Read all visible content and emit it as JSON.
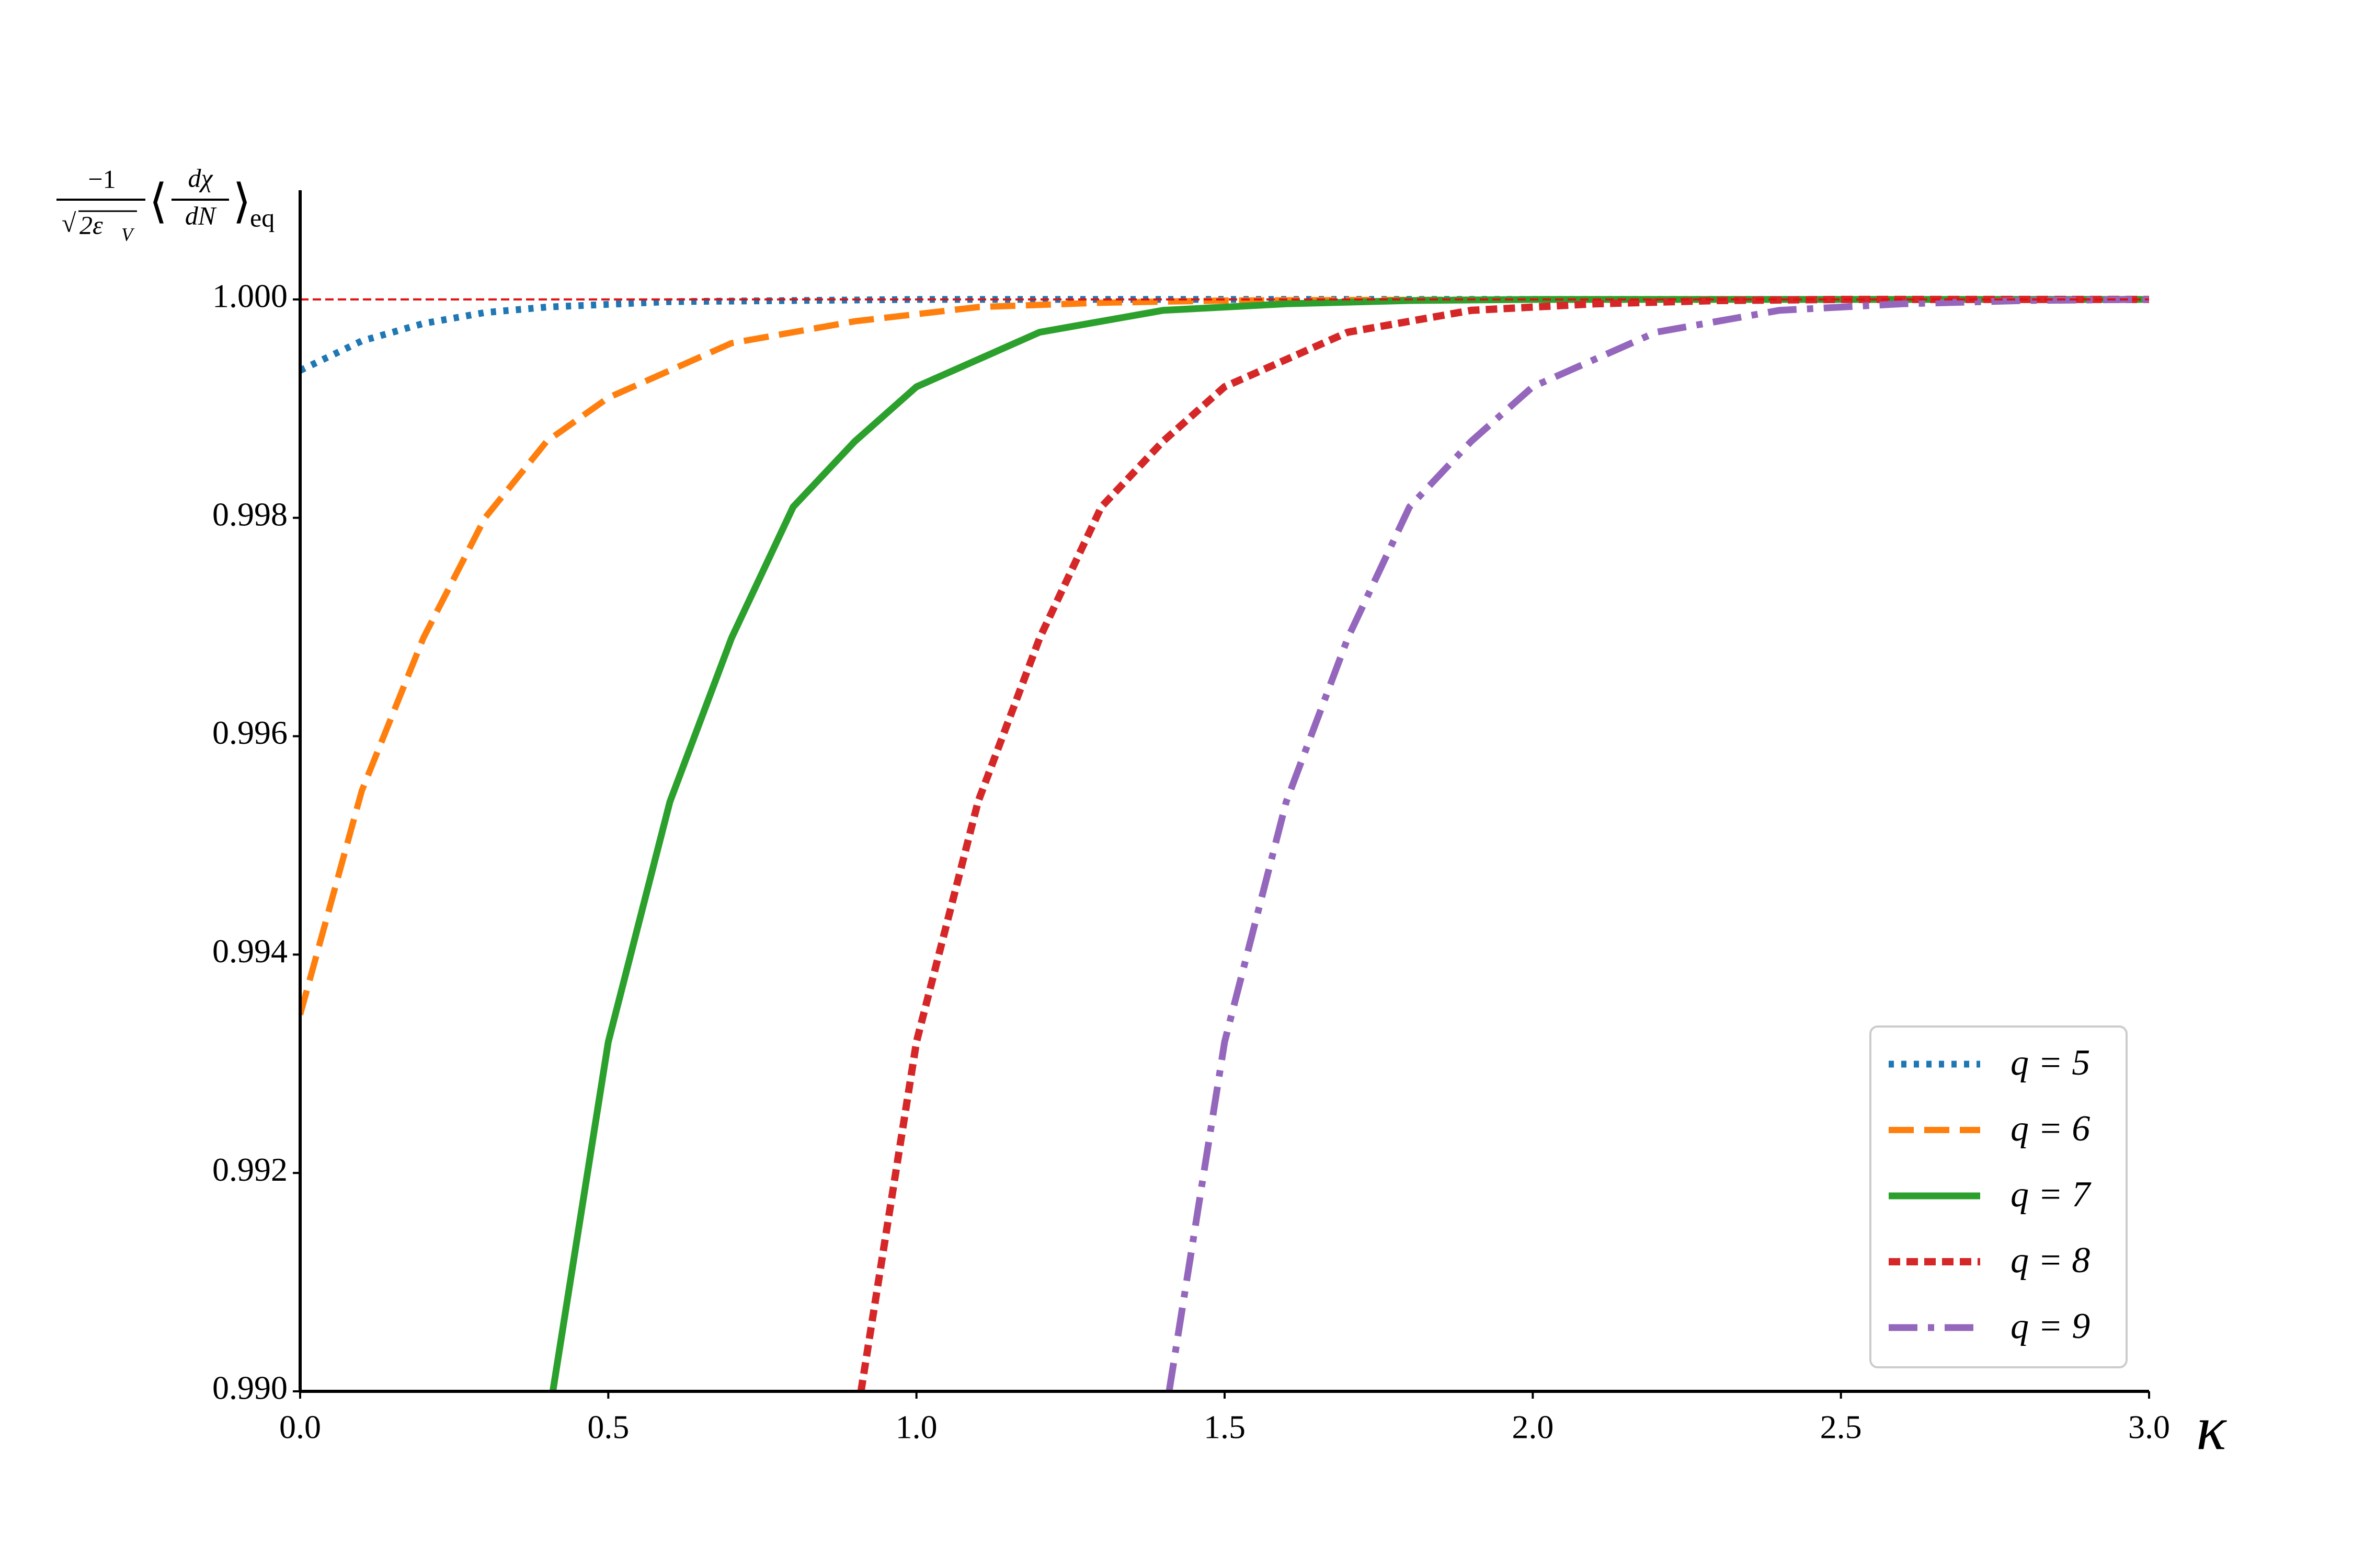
{
  "chart_data": {
    "type": "line",
    "ylabel": {
      "num1": "−1",
      "sqrt": "√",
      "den1": "2ε",
      "den1_sub": "V",
      "open": "⟨",
      "num2": "dχ",
      "den2": "dN",
      "close": "⟩",
      "sub": "eq"
    },
    "xlabel": "κ",
    "xlim": [
      0,
      3
    ],
    "ylim": [
      0.99,
      1.001
    ],
    "xticks": [
      {
        "value": 0,
        "label": "0.0"
      },
      0.5,
      {
        "value": 1,
        "label": "1.0"
      },
      1.5,
      {
        "value": 2,
        "label": "2.0"
      },
      2.5,
      {
        "value": 3,
        "label": "3.0"
      }
    ],
    "yticks": [
      {
        "value": 0.99,
        "label": "0.990"
      },
      {
        "value": 0.992,
        "label": "0.992"
      },
      {
        "value": 0.994,
        "label": "0.994"
      },
      {
        "value": 0.996,
        "label": "0.996"
      },
      {
        "value": 0.998,
        "label": "0.998"
      },
      {
        "value": 1,
        "label": "1.000"
      }
    ],
    "reference_line": {
      "value": 1,
      "color": "#e01010"
    },
    "legend": "lower right",
    "series": [
      {
        "name": "q = 5",
        "color": "#1f77b4",
        "dash": "dotted",
        "x": [
          0,
          0.1,
          0.2,
          0.3,
          0.4,
          0.6,
          0.8,
          1.0,
          1.5,
          3.0
        ],
        "values": [
          0.99935,
          0.99962,
          0.99978,
          0.99988,
          0.99993,
          0.99998,
          0.99999,
          1.0,
          1.0,
          1.0
        ]
      },
      {
        "name": "q = 6",
        "color": "#ff7f0e",
        "dash": "dashed",
        "x": [
          0,
          0.1,
          0.2,
          0.3,
          0.4,
          0.5,
          0.7,
          0.9,
          1.1,
          1.3,
          1.5,
          2.0,
          3.0
        ],
        "values": [
          0.99345,
          0.9955,
          0.9969,
          0.998,
          0.9987,
          0.9991,
          0.9996,
          0.9998,
          0.99993,
          0.99997,
          0.99999,
          1.0,
          1.0
        ]
      },
      {
        "name": "q = 7",
        "color": "#2ca02c",
        "dash": "solid",
        "x": [
          0.41,
          0.5,
          0.6,
          0.7,
          0.8,
          0.9,
          1.0,
          1.2,
          1.4,
          1.6,
          1.8,
          2.0,
          2.5,
          3.0
        ],
        "values": [
          0.99,
          0.9932,
          0.9954,
          0.9969,
          0.9981,
          0.9987,
          0.9992,
          0.9997,
          0.9999,
          0.99996,
          0.99999,
          1.0,
          1.0,
          1.0
        ]
      },
      {
        "name": "q = 8",
        "color": "#d62728",
        "dash": "short",
        "x": [
          0.91,
          1.0,
          1.1,
          1.2,
          1.3,
          1.4,
          1.5,
          1.7,
          1.9,
          2.1,
          2.3,
          2.5,
          3.0
        ],
        "values": [
          0.99,
          0.9932,
          0.9954,
          0.9969,
          0.9981,
          0.9987,
          0.9992,
          0.9997,
          0.9999,
          0.99996,
          0.99999,
          1.0,
          1.0
        ]
      },
      {
        "name": "q = 9",
        "color": "#9467bd",
        "dash": "dashdot",
        "x": [
          1.41,
          1.5,
          1.6,
          1.7,
          1.8,
          1.9,
          2.0,
          2.2,
          2.4,
          2.6,
          2.8,
          3.0
        ],
        "values": [
          0.99,
          0.9932,
          0.9954,
          0.9969,
          0.9981,
          0.9987,
          0.9992,
          0.9997,
          0.9999,
          0.99996,
          0.99999,
          1.0
        ]
      }
    ]
  }
}
